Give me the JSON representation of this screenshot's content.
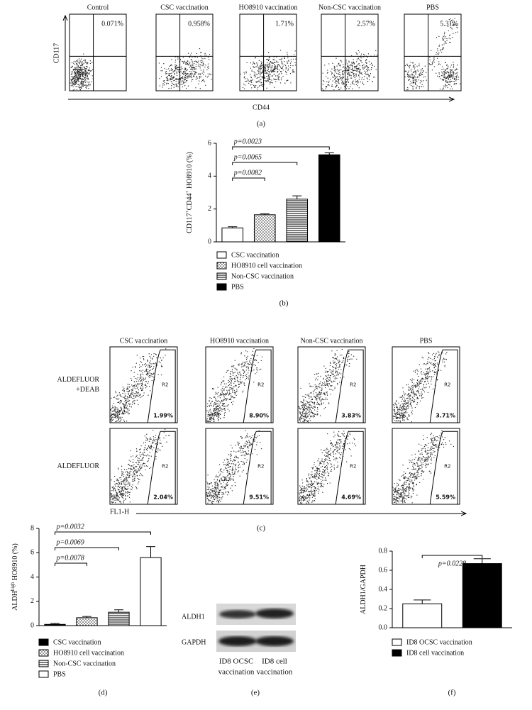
{
  "panels": {
    "a": {
      "caption": "(a)",
      "x_label": "CD44",
      "y_label": "CD117",
      "plots": [
        {
          "title": "Control",
          "percent": "0.071%"
        },
        {
          "title": "CSC vaccination",
          "percent": "0.958%"
        },
        {
          "title": "HO8910 vaccination",
          "percent": "1.71%"
        },
        {
          "title": "Non-CSC vaccination",
          "percent": "2.57%"
        },
        {
          "title": "PBS",
          "percent": "5.31%"
        }
      ]
    },
    "c": {
      "caption": "(c)",
      "x_label": "FL1-H",
      "gate_label": "R2",
      "columns": [
        "CSC vaccination",
        "HO8910 vaccination",
        "Non-CSC vaccination",
        "PBS"
      ],
      "rows": [
        {
          "label": [
            "ALDEFLUOR",
            "+DEAB"
          ],
          "percents": [
            "1.99%",
            "8.90%",
            "3.83%",
            "3.71%"
          ]
        },
        {
          "label": [
            "ALDEFLUOR"
          ],
          "percents": [
            "2.04%",
            "9.51%",
            "4.69%",
            "5.59%"
          ]
        }
      ]
    },
    "e": {
      "caption": "(e)",
      "row_labels": [
        "ALDH1",
        "GAPDH"
      ],
      "lane_labels": [
        [
          "ID8 OCSC",
          "vaccination"
        ],
        [
          "ID8 cell",
          "vaccination"
        ]
      ]
    }
  },
  "chart_data": [
    {
      "type": "bar",
      "caption": "(b)",
      "ylabel": [
        {
          "text": "CD117"
        },
        {
          "text": "+",
          "sup": true
        },
        {
          "text": "CD44"
        },
        {
          "text": "+",
          "sup": true
        },
        {
          "text": " HO8910 (%)"
        }
      ],
      "ylim": [
        0,
        6
      ],
      "yticks": [
        0,
        2,
        4,
        6
      ],
      "series": [
        {
          "name": "CSC vaccination",
          "color": "#ffffff",
          "pattern": "solid",
          "values": [
            0.85
          ],
          "errors": [
            0.07
          ]
        },
        {
          "name": "HO8910 cell vaccination",
          "color": "#ffffff",
          "pattern": "dots",
          "values": [
            1.65
          ],
          "errors": [
            0.06
          ]
        },
        {
          "name": "Non-CSC vaccination",
          "color": "#ffffff",
          "pattern": "hlines",
          "values": [
            2.6
          ],
          "errors": [
            0.2
          ]
        },
        {
          "name": "PBS",
          "color": "#000000",
          "pattern": "solid",
          "values": [
            5.3
          ],
          "errors": [
            0.12
          ]
        }
      ],
      "comparisons": [
        {
          "from": 0,
          "to": 1,
          "label": "p=0.0082"
        },
        {
          "from": 0,
          "to": 2,
          "label": "p=0.0065"
        },
        {
          "from": 0,
          "to": 3,
          "label": "p=0.0023"
        }
      ]
    },
    {
      "type": "bar",
      "caption": "(d)",
      "ylabel": [
        {
          "text": "ALDH"
        },
        {
          "text": "high",
          "sup": true
        },
        {
          "text": " HO8910 (%)"
        }
      ],
      "ylim": [
        0,
        8
      ],
      "yticks": [
        0,
        2,
        4,
        6,
        8
      ],
      "series": [
        {
          "name": "CSC vaccination",
          "color": "#000000",
          "pattern": "solid",
          "values": [
            0.1
          ],
          "errors": [
            0.08
          ]
        },
        {
          "name": "HO8910 cell vaccination",
          "color": "#ffffff",
          "pattern": "dots",
          "values": [
            0.65
          ],
          "errors": [
            0.1
          ]
        },
        {
          "name": "Non-CSC vaccination",
          "color": "#ffffff",
          "pattern": "hlines",
          "values": [
            1.1
          ],
          "errors": [
            0.2
          ]
        },
        {
          "name": "PBS",
          "color": "#ffffff",
          "pattern": "solid",
          "values": [
            5.6
          ],
          "errors": [
            0.9
          ]
        }
      ],
      "comparisons": [
        {
          "from": 0,
          "to": 1,
          "label": "p=0.0078"
        },
        {
          "from": 0,
          "to": 2,
          "label": "p=0.0069"
        },
        {
          "from": 0,
          "to": 3,
          "label": "p=0.0032"
        }
      ]
    },
    {
      "type": "bar",
      "caption": "(f)",
      "ylabel": [
        {
          "text": "ALDH1/GAPDH"
        }
      ],
      "ylim": [
        0,
        0.8
      ],
      "yticks": [
        {
          "value": 0,
          "label": "0.0"
        },
        0.2,
        0.4,
        0.6,
        0.8
      ],
      "series": [
        {
          "name": "ID8 OCSC vaccination",
          "color": "#ffffff",
          "pattern": "solid",
          "values": [
            0.25
          ],
          "errors": [
            0.04
          ]
        },
        {
          "name": "ID8 cell vaccination",
          "color": "#000000",
          "pattern": "solid",
          "values": [
            0.67
          ],
          "errors": [
            0.05
          ]
        }
      ],
      "comparisons": [
        {
          "from": 0,
          "to": 1,
          "label": "p=0.0228"
        }
      ]
    }
  ]
}
